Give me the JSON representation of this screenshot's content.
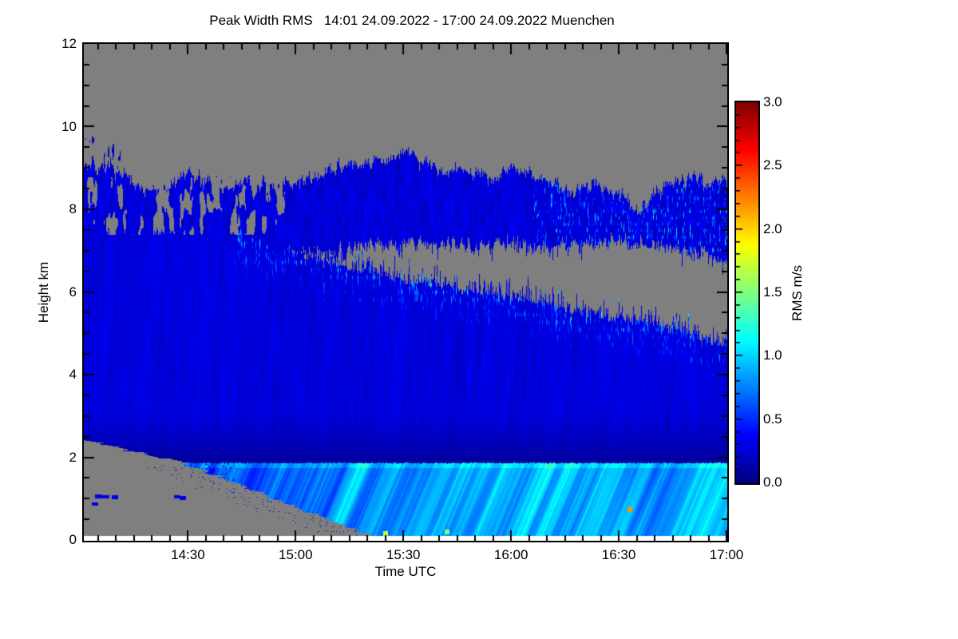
{
  "page": {
    "background": "#ffffff"
  },
  "chart_data": {
    "type": "heatmap",
    "title": "Peak Width RMS   14:01 24.09.2022 - 17:00 24.09.2022 Muenchen",
    "xlabel": "Time UTC",
    "ylabel": "Height km",
    "x_start": "14:01",
    "x_end": "17:00",
    "x_total_minutes": 179,
    "x_ticks": [
      {
        "label": "14:30",
        "minute": 29
      },
      {
        "label": "15:00",
        "minute": 59
      },
      {
        "label": "15:30",
        "minute": 89
      },
      {
        "label": "16:00",
        "minute": 119
      },
      {
        "label": "16:30",
        "minute": 149
      },
      {
        "label": "17:00",
        "minute": 179
      }
    ],
    "x_minor_step_min": 5,
    "x_minor_offset_min": 4,
    "ylim": [
      0,
      12
    ],
    "y_ticks": [
      {
        "label": "0",
        "km": 0
      },
      {
        "label": "2",
        "km": 2
      },
      {
        "label": "4",
        "km": 4
      },
      {
        "label": "6",
        "km": 6
      },
      {
        "label": "8",
        "km": 8
      },
      {
        "label": "10",
        "km": 10
      },
      {
        "label": "12",
        "km": 12
      }
    ],
    "y_minor_step_km": 0.5,
    "colorbar": {
      "label": "RMS m/s",
      "min": 0.0,
      "max": 3.0,
      "ticks": [
        {
          "label": "0.0",
          "v": 0.0
        },
        {
          "label": "0.5",
          "v": 0.5
        },
        {
          "label": "1.0",
          "v": 1.0
        },
        {
          "label": "1.5",
          "v": 1.5
        },
        {
          "label": "2.0",
          "v": 2.0
        },
        {
          "label": "2.5",
          "v": 2.5
        },
        {
          "label": "3.0",
          "v": 3.0
        }
      ],
      "minor_step": 0.1,
      "colormap": "jet"
    },
    "no_data_color": "#7f7f7f",
    "axis_color": "#000000",
    "white_strip_below_km": 0.105,
    "values_rms_ms": {
      "cirrus_band_base": 0.115,
      "cirrus_band_noise_amp": 0.3,
      "main_layer_base": 0.27,
      "dark_layer_value": 0.065,
      "dark_layer_top_km": 3.2,
      "sharp_line_km": 1.87,
      "edge_fleck_max": 1.25
    },
    "profiles": {
      "comment": "piecewise-linear boundaries; t = minutes after 14:01 UTC, h = km",
      "cloud_top": {
        "t": [
          0,
          8,
          15,
          22,
          30,
          38,
          45,
          52,
          60,
          68,
          75,
          82,
          90,
          98,
          105,
          112,
          120,
          128,
          135,
          142,
          150,
          155,
          160,
          168,
          174,
          179
        ],
        "h": [
          9.15,
          9.0,
          8.6,
          8.45,
          8.85,
          8.6,
          8.8,
          8.55,
          8.65,
          8.9,
          9.1,
          9.2,
          9.3,
          9.05,
          8.85,
          8.8,
          9.0,
          8.75,
          8.5,
          8.55,
          8.35,
          7.95,
          8.5,
          8.75,
          8.7,
          8.65
        ]
      },
      "cirrus_bottom": {
        "t": [
          0,
          10,
          20,
          30,
          40,
          50,
          58,
          70,
          80,
          90,
          100,
          110,
          120,
          130,
          140,
          150,
          160,
          170,
          179
        ],
        "h": [
          7.3,
          7.4,
          7.5,
          7.35,
          7.45,
          7.25,
          7.1,
          7.05,
          7.15,
          7.25,
          7.2,
          7.15,
          7.25,
          7.1,
          7.25,
          7.3,
          7.15,
          7.0,
          6.9
        ]
      },
      "main_top": {
        "t": [
          58,
          64,
          70,
          76,
          82,
          89,
          96,
          103,
          110,
          117,
          124,
          131,
          138,
          145,
          152,
          159,
          166,
          172,
          179
        ],
        "h": [
          7.0,
          6.9,
          6.75,
          6.6,
          6.5,
          6.4,
          6.3,
          6.2,
          6.1,
          6.0,
          5.9,
          5.75,
          5.6,
          5.5,
          5.45,
          5.3,
          5.15,
          5.0,
          4.85
        ]
      },
      "gap_opens_after_min": 58,
      "hole_zone_km": [
        7.4,
        8.78
      ],
      "wedge_no_data": {
        "h_at_t0_km": 2.42,
        "knee_t_min": 28,
        "knee_h_km": 1.87,
        "slope_min_per_km": 29.3
      },
      "surface_band_rms": {
        "t": [
          24,
          40,
          55,
          70,
          85,
          100,
          115,
          130,
          145,
          160,
          172,
          179
        ],
        "v": [
          0.5,
          0.62,
          0.7,
          0.8,
          0.85,
          0.8,
          0.9,
          0.95,
          1.0,
          0.85,
          0.9,
          0.88
        ]
      }
    },
    "wedge_specks_t_h": [
      [
        4,
        1.06
      ],
      [
        6,
        1.05
      ],
      [
        8.5,
        1.04
      ],
      [
        26,
        1.05
      ],
      [
        27.5,
        1.03
      ],
      [
        3,
        0.88
      ]
    ],
    "hot_specks_t_h_v": [
      [
        84,
        0.16,
        1.7
      ],
      [
        101,
        0.2,
        1.5
      ],
      [
        152,
        0.75,
        2.2
      ]
    ]
  }
}
